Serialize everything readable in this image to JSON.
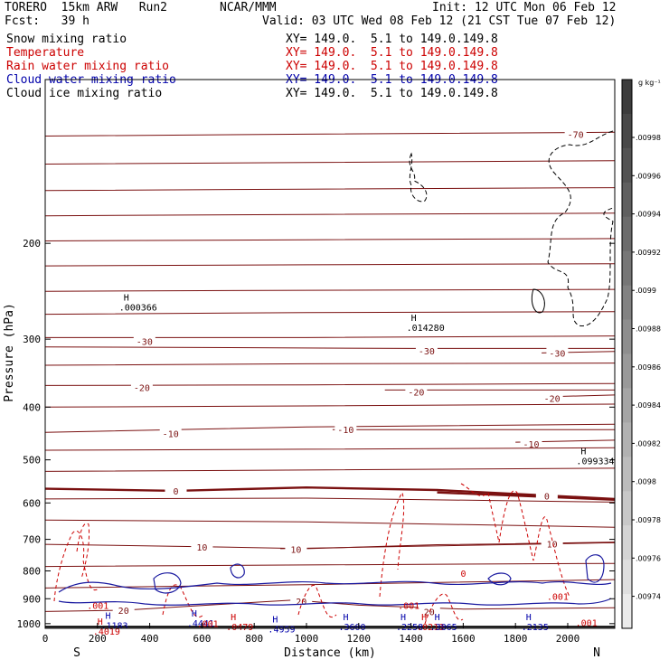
{
  "header": {
    "model": "TORERO  15km ARW   Run2",
    "org": "NCAR/MMM",
    "init": "Init: 12 UTC Mon 06 Feb 12",
    "fcst": "Fcst:   39 h",
    "valid": "Valid: 03 UTC Wed 08 Feb 12 (21 CST Tue 07 Feb 12)"
  },
  "legend": [
    {
      "name": "Snow mixing ratio",
      "xy": "XY= 149.0.  5.1 to 149.0.149.8",
      "color": "#000000"
    },
    {
      "name": "Temperature",
      "xy": "XY= 149.0.  5.1 to 149.0.149.8",
      "color": "#cc0000"
    },
    {
      "name": "Rain water mixing ratio",
      "xy": "XY= 149.0.  5.1 to 149.0.149.8",
      "color": "#cc0000"
    },
    {
      "name": "Cloud water mixing ratio",
      "xy": "XY= 149.0.  5.1 to 149.0.149.8",
      "color": "#0000aa"
    },
    {
      "name": "Cloud ice mixing ratio",
      "xy": "XY= 149.0.  5.1 to 149.0.149.8",
      "color": "#000000"
    }
  ],
  "chart_data": {
    "type": "cross-section contour",
    "xlabel": "Distance (km)",
    "ylabel": "Pressure (hPa)",
    "x_ticks": [
      0,
      200,
      400,
      600,
      800,
      1000,
      1200,
      1400,
      1600,
      1800,
      2000
    ],
    "y_ticks": [
      200,
      300,
      400,
      500,
      600,
      700,
      800,
      900,
      1000
    ],
    "xlim": [
      0,
      2180
    ],
    "ylim": [
      1020,
      100
    ],
    "y_scale": "log",
    "endpoints": {
      "left": "S",
      "right": "N"
    },
    "temperature_contours": [
      {
        "label": "-70",
        "values": [
          [
            0,
            127
          ],
          [
            1000,
            126
          ],
          [
            2180,
            125
          ]
        ],
        "label_at": [
          2030,
          126
        ]
      },
      {
        "label": "",
        "values": [
          [
            0,
            143
          ],
          [
            1000,
            142
          ],
          [
            2180,
            141
          ]
        ]
      },
      {
        "label": "",
        "values": [
          [
            0,
            160
          ],
          [
            1000,
            159
          ],
          [
            2180,
            158
          ]
        ]
      },
      {
        "label": "",
        "values": [
          [
            0,
            178
          ],
          [
            1000,
            177
          ],
          [
            2180,
            176
          ]
        ]
      },
      {
        "label": "",
        "values": [
          [
            0,
            198
          ],
          [
            1000,
            197
          ],
          [
            2180,
            196
          ]
        ]
      },
      {
        "label": "",
        "values": [
          [
            0,
            220
          ],
          [
            1000,
            219
          ],
          [
            2180,
            218
          ]
        ]
      },
      {
        "label": "",
        "values": [
          [
            0,
            245
          ],
          [
            1000,
            244
          ],
          [
            2180,
            243
          ]
        ]
      },
      {
        "label": "",
        "values": [
          [
            0,
            270
          ],
          [
            1000,
            268
          ],
          [
            2180,
            267
          ]
        ]
      },
      {
        "label": "-30",
        "values": [
          [
            0,
            298
          ],
          [
            1000,
            298
          ],
          [
            2180,
            296
          ]
        ],
        "label_at": [
          380,
          303
        ]
      },
      {
        "label": "-30",
        "values": [
          [
            0,
            310
          ],
          [
            1400,
            312
          ],
          [
            2180,
            312
          ]
        ],
        "label_at": [
          1460,
          315
        ]
      },
      {
        "label": "-30",
        "values": [
          [
            1900,
            318
          ],
          [
            2180,
            316
          ]
        ],
        "label_at": [
          1960,
          318
        ]
      },
      {
        "label": "",
        "values": [
          [
            0,
            335
          ],
          [
            1000,
            333
          ],
          [
            2180,
            332
          ]
        ]
      },
      {
        "label": "-20",
        "values": [
          [
            0,
            365
          ],
          [
            1000,
            364
          ],
          [
            2180,
            362
          ]
        ],
        "label_at": [
          370,
          368
        ]
      },
      {
        "label": "-20",
        "values": [
          [
            1300,
            372
          ],
          [
            2180,
            372
          ]
        ],
        "label_at": [
          1420,
          375
        ]
      },
      {
        "label": "-20",
        "values": [
          [
            1900,
            383
          ],
          [
            2180,
            380
          ]
        ],
        "label_at": [
          1940,
          385
        ]
      },
      {
        "label": "",
        "values": [
          [
            0,
            400
          ],
          [
            1000,
            398
          ],
          [
            2180,
            395
          ]
        ]
      },
      {
        "label": "-10",
        "values": [
          [
            0,
            445
          ],
          [
            1000,
            435
          ],
          [
            2180,
            430
          ]
        ],
        "label_at": [
          480,
          447
        ]
      },
      {
        "label": "-10",
        "values": [
          [
            1100,
            440
          ],
          [
            2180,
            440
          ]
        ],
        "label_at": [
          1150,
          440
        ]
      },
      {
        "label": "-10",
        "values": [
          [
            1800,
            464
          ],
          [
            2180,
            460
          ]
        ],
        "label_at": [
          1860,
          467
        ]
      },
      {
        "label": "",
        "values": [
          [
            0,
            480
          ],
          [
            1000,
            478
          ],
          [
            2180,
            475
          ]
        ]
      },
      {
        "label": "",
        "values": [
          [
            0,
            525
          ],
          [
            1000,
            522
          ],
          [
            2180,
            518
          ]
        ]
      },
      {
        "label": "0",
        "values": [
          [
            0,
            565
          ],
          [
            500,
            570
          ],
          [
            1000,
            562
          ],
          [
            1500,
            568
          ],
          [
            2180,
            590
          ]
        ],
        "label_at": [
          500,
          570
        ]
      },
      {
        "label": "0",
        "values": [
          [
            1500,
            574
          ],
          [
            2180,
            592
          ]
        ],
        "label_at": [
          1920,
          582
        ]
      },
      {
        "label": "",
        "values": [
          [
            0,
            590
          ],
          [
            1000,
            588
          ],
          [
            2180,
            598
          ]
        ]
      },
      {
        "label": "",
        "values": [
          [
            0,
            645
          ],
          [
            1000,
            650
          ],
          [
            2180,
            665
          ]
        ]
      },
      {
        "label": "10",
        "values": [
          [
            0,
            715
          ],
          [
            600,
            722
          ],
          [
            1000,
            728
          ],
          [
            1500,
            716
          ],
          [
            2180,
            710
          ]
        ],
        "label_at": [
          600,
          723
        ]
      },
      {
        "label": "10",
        "values": [
          [
            900,
            728
          ],
          [
            2180,
            710
          ]
        ],
        "label_at": [
          960,
          730
        ]
      },
      {
        "label": "10",
        "values": [
          [
            1800,
            713
          ],
          [
            2180,
            708
          ]
        ],
        "label_at": [
          1940,
          713
        ]
      },
      {
        "label": "",
        "values": [
          [
            0,
            785
          ],
          [
            1000,
            780
          ],
          [
            2180,
            775
          ]
        ]
      },
      {
        "label": "",
        "values": [
          [
            0,
            860
          ],
          [
            1000,
            848
          ],
          [
            2180,
            830
          ]
        ]
      },
      {
        "label": "20",
        "values": [
          [
            0,
            950
          ],
          [
            300,
            945
          ],
          [
            700,
            920
          ],
          [
            950,
            905
          ],
          [
            1200,
            925
          ],
          [
            1600,
            940
          ],
          [
            2180,
            935
          ]
        ],
        "label_at": [
          300,
          945
        ]
      },
      {
        "label": "20",
        "values": [
          [
            900,
            910
          ]
        ],
        "label_at": [
          980,
          910
        ]
      },
      {
        "label": "20",
        "values": [
          [
            1400,
            950
          ]
        ],
        "label_at": [
          1470,
          950
        ]
      }
    ],
    "maxima": [
      {
        "label": "H",
        "value": ".000366",
        "x": 300,
        "p": 255
      },
      {
        "label": "H",
        "value": ".014280",
        "x": 1400,
        "p": 278
      },
      {
        "label": "H",
        "value": ".099334",
        "x": 2050,
        "p": 488
      },
      {
        "label": "H",
        "value": ".1183",
        "x": 230,
        "p": 980,
        "color": "#0000aa"
      },
      {
        "label": "H",
        "value": ".4019",
        "x": 200,
        "p": 1005,
        "color": "#cc0000"
      },
      {
        "label": "H",
        "value": ".4441",
        "x": 560,
        "p": 970,
        "color": "#0000aa"
      },
      {
        "label": "H",
        "value": ".0479",
        "x": 710,
        "p": 985,
        "color": "#cc0000"
      },
      {
        "label": "H",
        "value": ".4959",
        "x": 870,
        "p": 995,
        "color": "#0000aa"
      },
      {
        "label": "H",
        "value": ".3600",
        "x": 1140,
        "p": 985,
        "color": "#0000aa"
      },
      {
        "label": "H",
        "value": ".2258",
        "x": 1360,
        "p": 985,
        "color": "#0000aa"
      },
      {
        "label": "H",
        "value": ".0213",
        "x": 1440,
        "p": 985,
        "color": "#cc0000"
      },
      {
        "label": "H",
        "value": ".3865",
        "x": 1490,
        "p": 985,
        "color": "#0000aa"
      },
      {
        "label": "H",
        "value": ".2135",
        "x": 1840,
        "p": 985,
        "color": "#0000aa"
      }
    ],
    "rain_labels": [
      {
        "value": ".001",
        "x": 160,
        "p": 940
      },
      {
        "value": ".001",
        "x": 580,
        "p": 1015
      },
      {
        "value": ".001",
        "x": 1350,
        "p": 940
      },
      {
        "value": ".001",
        "x": 1920,
        "p": 905
      },
      {
        "value": ".001",
        "x": 2030,
        "p": 1010
      },
      {
        "value": "0",
        "x": 1590,
        "p": 820
      }
    ],
    "colorbar": {
      "unit": "g kg⁻¹",
      "ticks": [
        ".00998",
        ".00996",
        ".00994",
        ".00992",
        ".0099",
        ".00988",
        ".00986",
        ".00984",
        ".00982",
        ".0098",
        ".00978",
        ".00976",
        ".00974"
      ]
    }
  }
}
